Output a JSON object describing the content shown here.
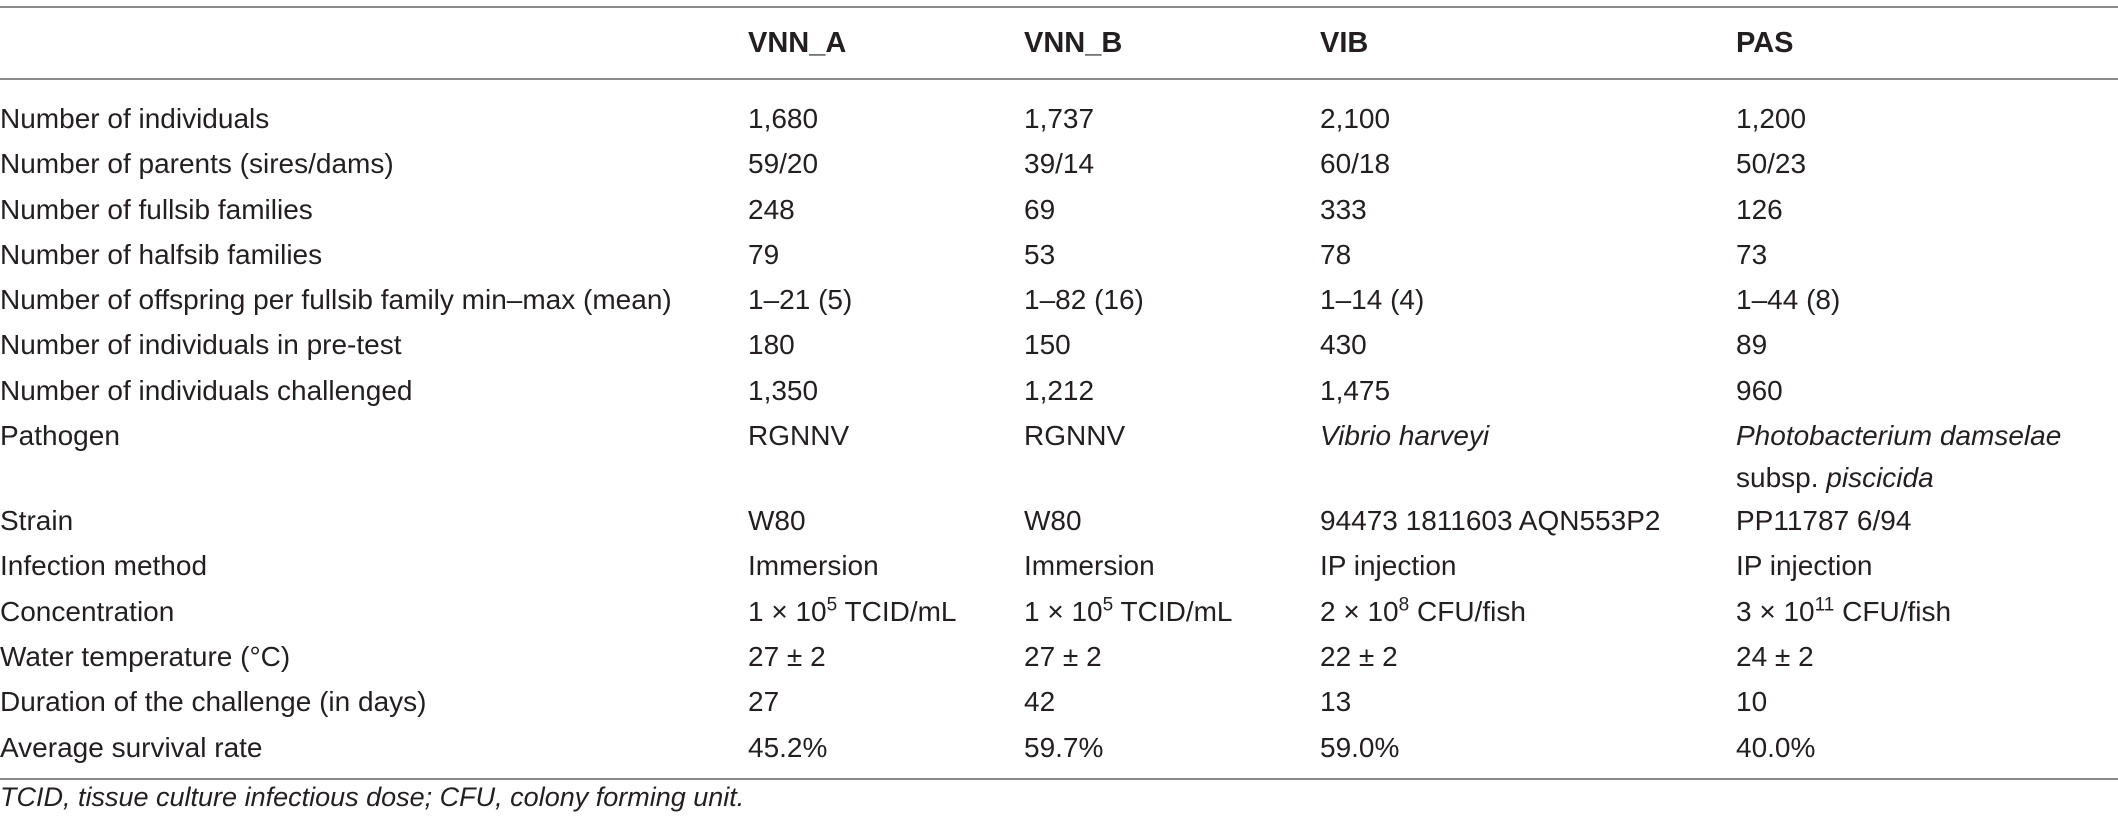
{
  "table": {
    "headers": [
      "",
      "VNN_A",
      "VNN_B",
      "VIB",
      "PAS"
    ],
    "rows": [
      {
        "label": "Number of individuals",
        "values": [
          "1,680",
          "1,737",
          "2,100",
          "1,200"
        ]
      },
      {
        "label": "Number of parents (sires/dams)",
        "values": [
          "59/20",
          "39/14",
          "60/18",
          "50/23"
        ]
      },
      {
        "label": "Number of fullsib families",
        "values": [
          "248",
          "69",
          "333",
          "126"
        ]
      },
      {
        "label": "Number of halfsib families",
        "values": [
          "79",
          "53",
          "78",
          "73"
        ]
      },
      {
        "label": "Number of offspring per fullsib family min–max (mean)",
        "values": [
          "1–21 (5)",
          "1–82 (16)",
          "1–14 (4)",
          "1–44 (8)"
        ]
      },
      {
        "label": "Number of individuals in pre-test",
        "values": [
          "180",
          "150",
          "430",
          "89"
        ]
      },
      {
        "label": "Number of individuals challenged",
        "values": [
          "1,350",
          "1,212",
          "1,475",
          "960"
        ]
      }
    ],
    "pathogen": {
      "label": "Pathogen",
      "vnn_a": "RGNNV",
      "vnn_b": "RGNNV",
      "vib": "Vibrio harveyi",
      "pas_line1": "Photobacterium damselae",
      "pas_line2_prefix": "subsp. ",
      "pas_line2_italic": "piscicida"
    },
    "rows2": [
      {
        "label": "Strain",
        "values": [
          "W80",
          "W80",
          "94473 1811603 AQN553P2",
          "PP11787 6/94"
        ]
      },
      {
        "label": "Infection method",
        "values": [
          "Immersion",
          "Immersion",
          "IP injection",
          "IP injection"
        ]
      }
    ],
    "concentration": {
      "label": "Concentration",
      "cells": [
        {
          "base": "1 × 10",
          "exp": "5",
          "unit": " TCID/mL"
        },
        {
          "base": "1 × 10",
          "exp": "5",
          "unit": " TCID/mL"
        },
        {
          "base": "2 × 10",
          "exp": "8",
          "unit": " CFU/fish"
        },
        {
          "base": "3 × 10",
          "exp": "11",
          "unit": " CFU/fish"
        }
      ]
    },
    "rows3": [
      {
        "label": "Water temperature (°C)",
        "values": [
          "27 ± 2",
          "27 ± 2",
          "22 ± 2",
          "24 ± 2"
        ]
      },
      {
        "label": "Duration of the challenge (in days)",
        "values": [
          "27",
          "42",
          "13",
          "10"
        ]
      },
      {
        "label": "Average survival rate",
        "values": [
          "45.2%",
          "59.7%",
          "59.0%",
          "40.0%"
        ]
      }
    ]
  },
  "footnote": "TCID, tissue culture infectious dose; CFU, colony forming unit."
}
